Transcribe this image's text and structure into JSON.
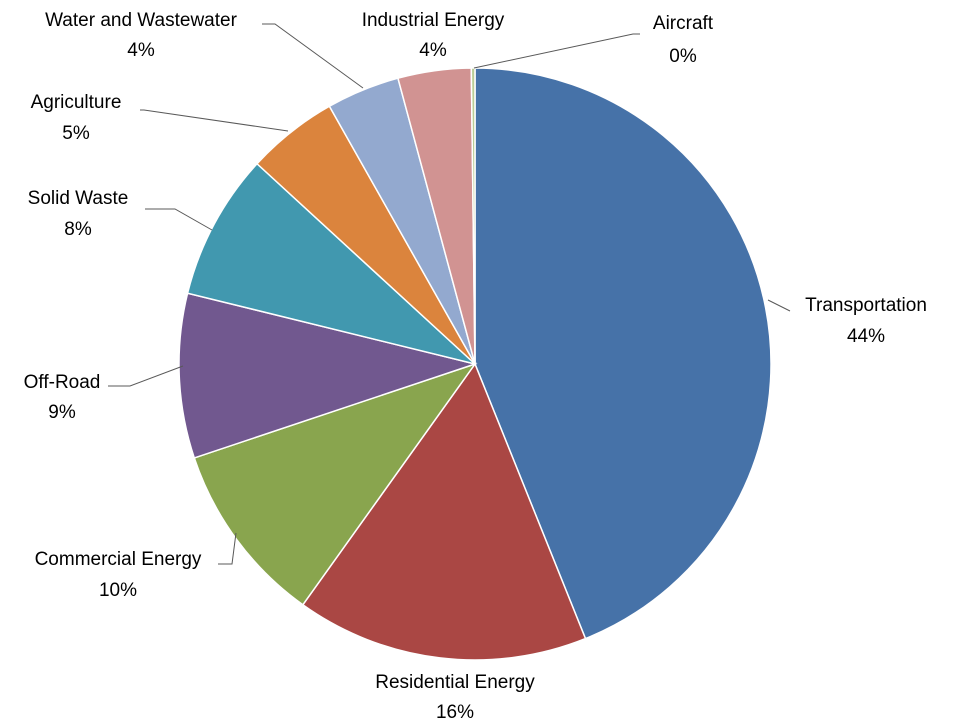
{
  "chart_data": {
    "type": "pie",
    "title": "",
    "start_angle_deg": 0,
    "direction": "clockwise",
    "legend": "none",
    "slices": [
      {
        "name": "Transportation",
        "value": 44,
        "label": "44%",
        "color": "#4672A8"
      },
      {
        "name": "Residential Energy",
        "value": 16,
        "label": "16%",
        "color": "#AA4744"
      },
      {
        "name": "Commercial Energy",
        "value": 10,
        "label": "10%",
        "color": "#89A54E"
      },
      {
        "name": "Off-Road",
        "value": 9,
        "label": "9%",
        "color": "#71588F"
      },
      {
        "name": "Solid Waste",
        "value": 8,
        "label": "8%",
        "color": "#4198AF"
      },
      {
        "name": "Agriculture",
        "value": 5,
        "label": "5%",
        "color": "#DB843D"
      },
      {
        "name": "Water and Wastewater",
        "value": 4,
        "label": "4%",
        "color": "#93A9CF"
      },
      {
        "name": "Industrial Energy",
        "value": 4,
        "label": "4%",
        "color": "#D19392"
      },
      {
        "name": "Aircraft",
        "value": 0.2,
        "label": "0%",
        "color": "#B9CD96"
      }
    ]
  }
}
